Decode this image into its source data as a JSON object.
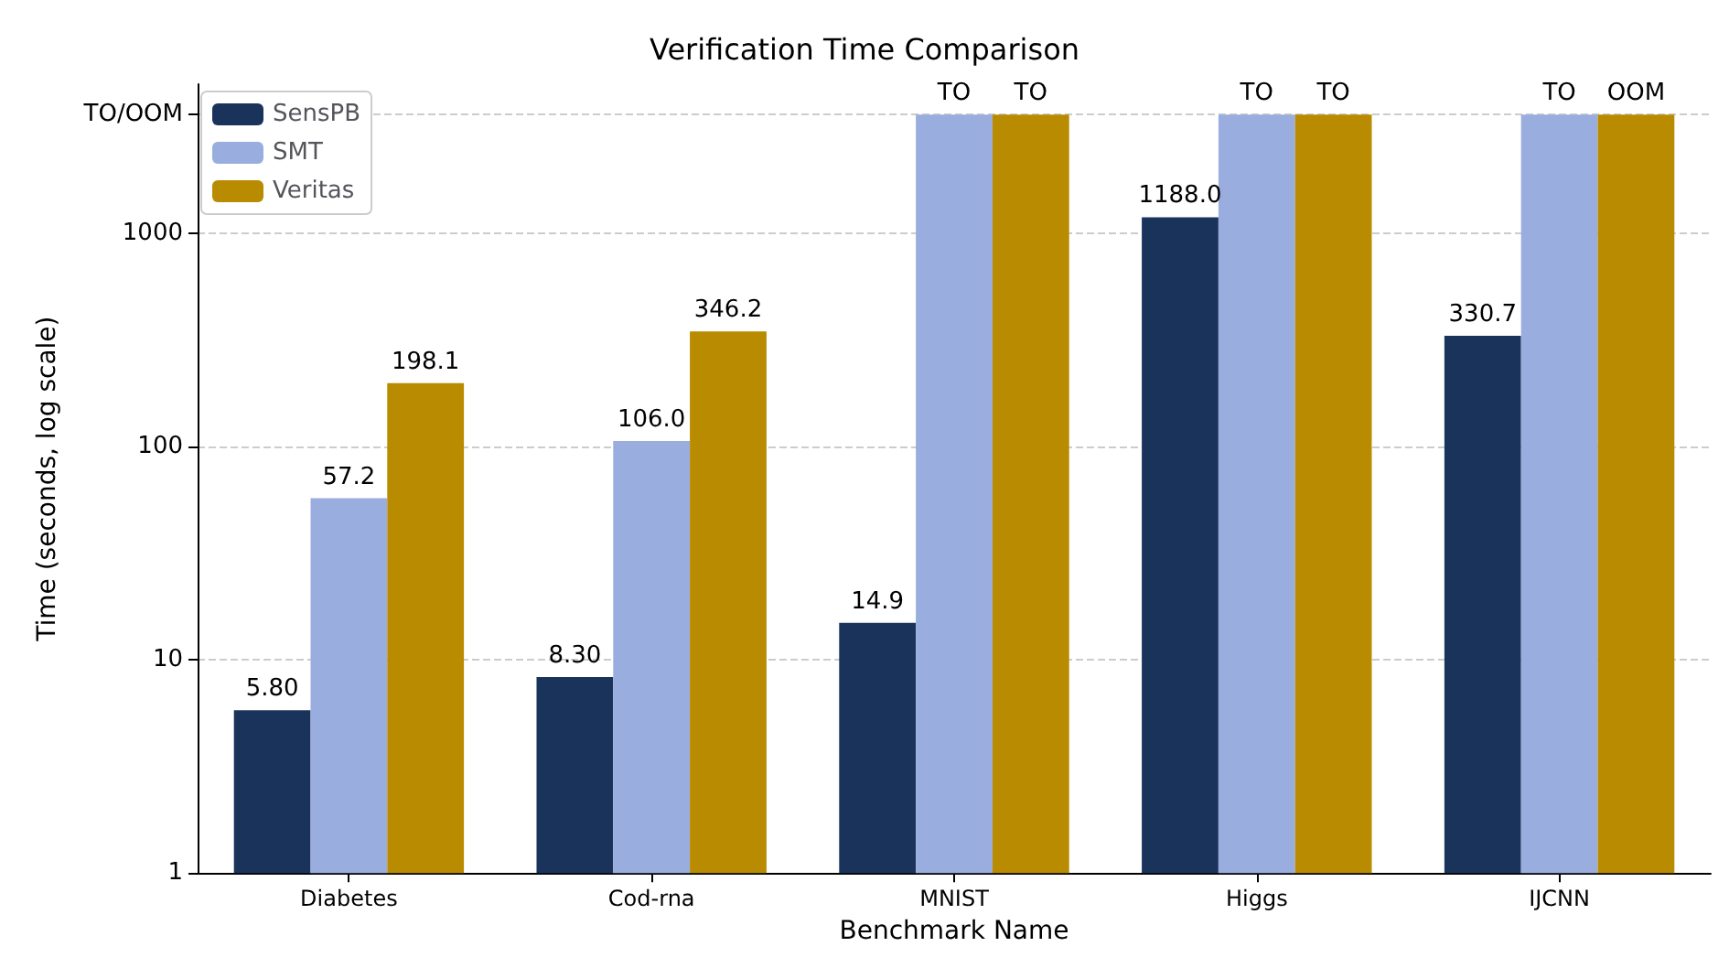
{
  "chart_data": {
    "type": "bar",
    "title": "Verification Time Comparison",
    "xlabel": "Benchmark Name",
    "ylabel": "Time (seconds, log scale)",
    "categories": [
      "Diabetes",
      "Cod-rna",
      "MNIST",
      "Higgs",
      "IJCNN"
    ],
    "series": [
      {
        "name": "SensPB",
        "color": "#1a335b",
        "values": [
          5.8,
          8.3,
          14.9,
          1188.0,
          330.7
        ],
        "value_labels": [
          "5.80",
          "8.30",
          "14.9",
          "1188.0",
          "330.7"
        ]
      },
      {
        "name": "SMT",
        "color": "#9aaddf",
        "values": [
          57.2,
          106.0,
          3600,
          3600,
          3600
        ],
        "value_labels": [
          "57.2",
          "106.0",
          "TO",
          "TO",
          "TO"
        ]
      },
      {
        "name": "Veritas",
        "color": "#b98b00",
        "values": [
          198.1,
          346.2,
          3600,
          3600,
          3600
        ],
        "value_labels": [
          "198.1",
          "346.2",
          "TO",
          "TO",
          "OOM"
        ]
      }
    ],
    "log": "y",
    "ylim": [
      1,
      5000
    ],
    "yticks": [
      1,
      10,
      100,
      1000,
      {
        "value": 3600,
        "label": "TO/OOM"
      }
    ],
    "grid": "y",
    "legend": "top left"
  }
}
